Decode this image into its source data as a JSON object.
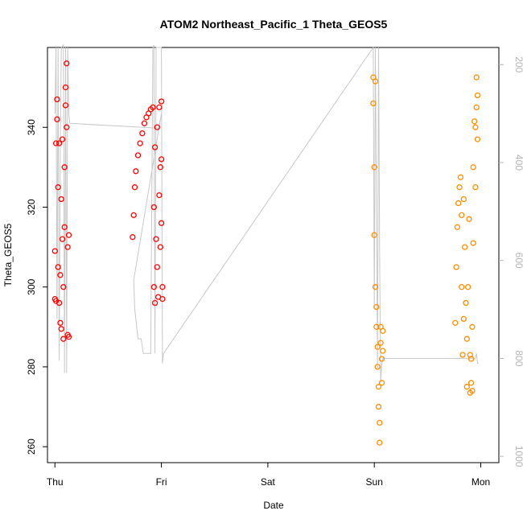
{
  "chart_data": {
    "type": "scatter",
    "title": "ATOM2 Northeast_Pacific_1 Theta_GEOS5",
    "xlabel": "Date",
    "ylabel": "Theta_GEOS5",
    "x_ticks": [
      "Thu",
      "Fri",
      "Sat",
      "Sun",
      "Mon"
    ],
    "xlim": [
      -0.07,
      4.17
    ],
    "ylim": [
      256,
      360
    ],
    "y_ticks": [
      260,
      280,
      300,
      320,
      340
    ],
    "y2_ticks": [
      200,
      400,
      600,
      800,
      1000
    ],
    "y2lim": [
      1013,
      165
    ],
    "series": [
      {
        "color": "#ff0000",
        "points": [
          [
            0.0,
            297
          ],
          [
            0.0,
            309
          ],
          [
            0.01,
            296.5
          ],
          [
            0.01,
            336
          ],
          [
            0.02,
            347
          ],
          [
            0.02,
            342
          ],
          [
            0.03,
            325
          ],
          [
            0.03,
            305
          ],
          [
            0.04,
            296
          ],
          [
            0.04,
            336
          ],
          [
            0.05,
            303
          ],
          [
            0.05,
            291
          ],
          [
            0.06,
            289.5
          ],
          [
            0.06,
            322
          ],
          [
            0.07,
            337
          ],
          [
            0.07,
            312
          ],
          [
            0.08,
            287
          ],
          [
            0.08,
            300
          ],
          [
            0.09,
            315
          ],
          [
            0.09,
            330
          ],
          [
            0.1,
            345.5
          ],
          [
            0.1,
            350
          ],
          [
            0.11,
            356
          ],
          [
            0.11,
            340
          ],
          [
            0.12,
            310
          ],
          [
            0.12,
            288
          ],
          [
            0.13,
            287.5
          ],
          [
            0.13,
            313
          ],
          [
            0.73,
            312.5
          ],
          [
            0.74,
            318
          ],
          [
            0.75,
            325
          ],
          [
            0.76,
            329
          ],
          [
            0.78,
            333
          ],
          [
            0.8,
            336
          ],
          [
            0.82,
            338.5
          ],
          [
            0.84,
            341
          ],
          [
            0.86,
            342.5
          ],
          [
            0.88,
            343.5
          ],
          [
            0.9,
            344.5
          ],
          [
            0.92,
            345
          ],
          [
            0.93,
            320
          ],
          [
            0.93,
            300
          ],
          [
            0.94,
            296
          ],
          [
            0.94,
            335
          ],
          [
            0.95,
            312
          ],
          [
            0.96,
            305
          ],
          [
            0.96,
            340
          ],
          [
            0.97,
            297.5
          ],
          [
            0.98,
            323
          ],
          [
            0.98,
            345
          ],
          [
            0.99,
            310
          ],
          [
            0.99,
            330
          ],
          [
            1.0,
            346.5
          ],
          [
            1.0,
            332
          ],
          [
            1.0,
            316
          ],
          [
            1.01,
            300
          ],
          [
            1.01,
            297
          ]
        ]
      },
      {
        "color": "#ff8c00",
        "points": [
          [
            2.99,
            352.5
          ],
          [
            2.99,
            346
          ],
          [
            3.0,
            330
          ],
          [
            3.0,
            313
          ],
          [
            3.01,
            351.5
          ],
          [
            3.01,
            300
          ],
          [
            3.02,
            295
          ],
          [
            3.02,
            290
          ],
          [
            3.03,
            285
          ],
          [
            3.03,
            280
          ],
          [
            3.04,
            275
          ],
          [
            3.04,
            270
          ],
          [
            3.05,
            266
          ],
          [
            3.05,
            261
          ],
          [
            3.06,
            286
          ],
          [
            3.06,
            290
          ],
          [
            3.07,
            282
          ],
          [
            3.07,
            276
          ],
          [
            3.08,
            289
          ],
          [
            3.08,
            284
          ],
          [
            3.76,
            291
          ],
          [
            3.77,
            305
          ],
          [
            3.78,
            315
          ],
          [
            3.79,
            321
          ],
          [
            3.8,
            325
          ],
          [
            3.81,
            327.5
          ],
          [
            3.82,
            318
          ],
          [
            3.82,
            300
          ],
          [
            3.83,
            283
          ],
          [
            3.84,
            292
          ],
          [
            3.84,
            322
          ],
          [
            3.85,
            310
          ],
          [
            3.86,
            296
          ],
          [
            3.87,
            275
          ],
          [
            3.87,
            287
          ],
          [
            3.88,
            300
          ],
          [
            3.89,
            317
          ],
          [
            3.9,
            283
          ],
          [
            3.9,
            273.5
          ],
          [
            3.91,
            282
          ],
          [
            3.91,
            276
          ],
          [
            3.92,
            290
          ],
          [
            3.92,
            274
          ],
          [
            3.93,
            311
          ],
          [
            3.93,
            330
          ],
          [
            3.94,
            341.5
          ],
          [
            3.95,
            325
          ],
          [
            3.95,
            340
          ],
          [
            3.96,
            345
          ],
          [
            3.96,
            352.5
          ],
          [
            3.97,
            337
          ],
          [
            3.97,
            348
          ]
        ]
      }
    ],
    "pressure_trace": {
      "color": "#c8c8c8",
      "points": [
        [
          0.0,
          300
        ],
        [
          0.01,
          165
        ],
        [
          0.02,
          720
        ],
        [
          0.03,
          165
        ],
        [
          0.04,
          805
        ],
        [
          0.05,
          380
        ],
        [
          0.06,
          165
        ],
        [
          0.08,
          160
        ],
        [
          0.09,
          830
        ],
        [
          0.1,
          165
        ],
        [
          0.11,
          830
        ],
        [
          0.12,
          165
        ],
        [
          0.13,
          300
        ],
        [
          0.14,
          320
        ],
        [
          0.98,
          330
        ],
        [
          1.0,
          300
        ],
        [
          1.0,
          300
        ],
        [
          0.74,
          640
        ],
        [
          0.75,
          700
        ],
        [
          0.76,
          720
        ],
        [
          0.78,
          760
        ],
        [
          0.81,
          760
        ],
        [
          0.83,
          790
        ],
        [
          0.86,
          790
        ],
        [
          0.9,
          790
        ],
        [
          0.92,
          165
        ],
        [
          0.93,
          160
        ],
        [
          0.94,
          790
        ],
        [
          0.95,
          165
        ],
        [
          1.0,
          165
        ],
        [
          1.01,
          810
        ],
        [
          1.02,
          790
        ],
        [
          2.99,
          165
        ],
        [
          3.0,
          700
        ],
        [
          3.01,
          165
        ],
        [
          3.03,
          820
        ],
        [
          3.04,
          165
        ],
        [
          3.05,
          580
        ],
        [
          3.06,
          850
        ],
        [
          3.07,
          810
        ],
        [
          3.08,
          800
        ],
        [
          3.09,
          800
        ],
        [
          3.95,
          800
        ],
        [
          3.96,
          790
        ],
        [
          3.97,
          810
        ],
        [
          3.98,
          810
        ]
      ]
    }
  }
}
